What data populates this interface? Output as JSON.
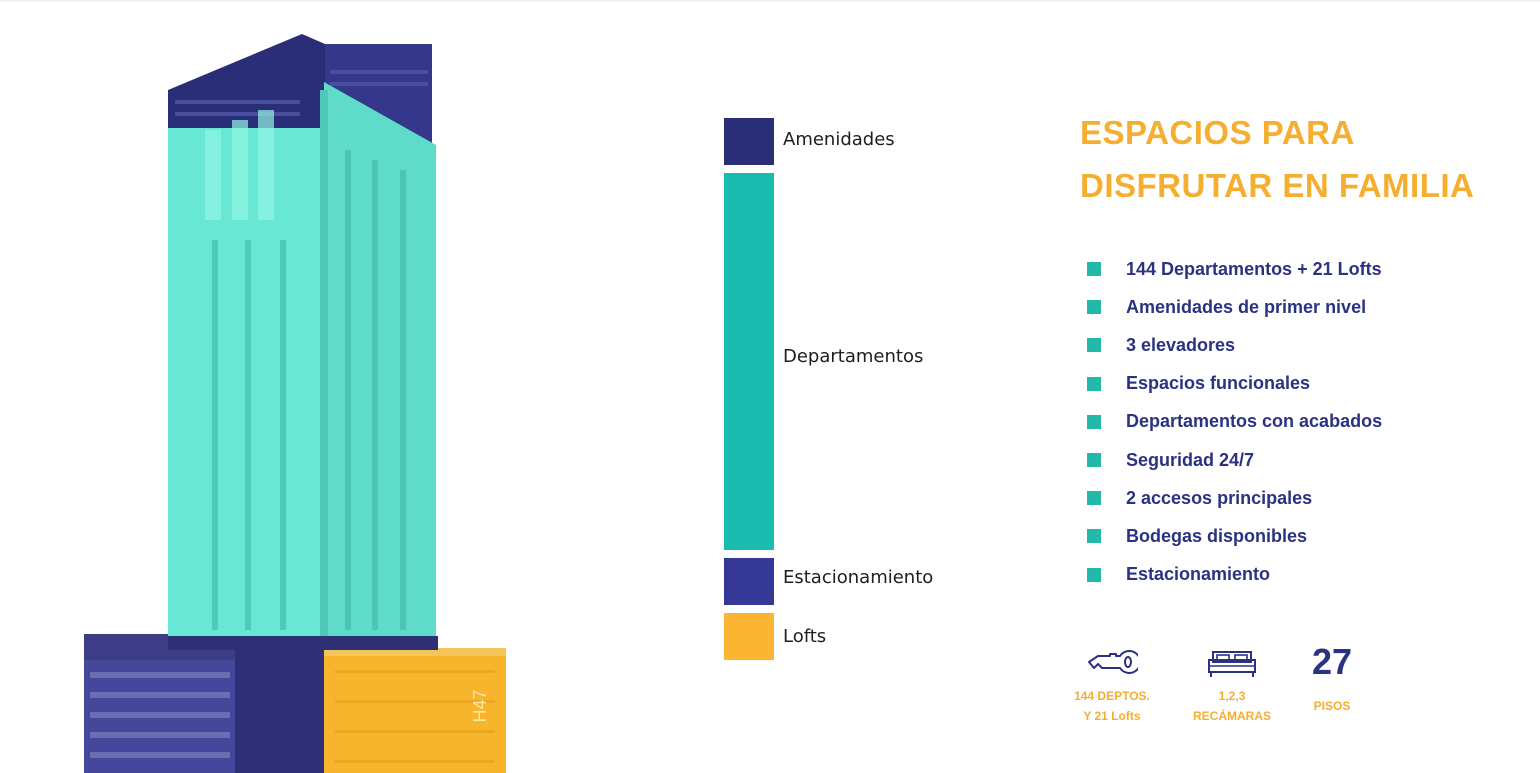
{
  "legend": [
    {
      "label": "Amenidades",
      "color": "#2a2e78"
    },
    {
      "label": "Departamentos",
      "color": "#1cbbaf"
    },
    {
      "label": "Estacionamiento",
      "color": "#353896"
    },
    {
      "label": "Lofts",
      "color": "#fbb533"
    }
  ],
  "heading": {
    "line1": "ESPACIOS PARA",
    "line2": "DISFRUTAR EN FAMILIA"
  },
  "features": [
    "144 Departamentos + 21 Lofts",
    "Amenidades de primer nivel",
    "3 elevadores",
    "Espacios funcionales",
    "Departamentos con acabados",
    "Seguridad 24/7",
    "2 accesos principales",
    "Bodegas disponibles",
    "Estacionamiento"
  ],
  "stats": {
    "units": {
      "icon": "key-icon",
      "line1": "144 DEPTOS.",
      "line2": "Y 21 Lofts"
    },
    "bedrooms": {
      "icon": "bed-icon",
      "line1": "1,2,3",
      "line2": "RECÁMARAS"
    },
    "floors": {
      "number": "27",
      "label": "PISOS"
    }
  },
  "building": {
    "sign": "H47",
    "colors": {
      "top": "#2a2e78",
      "tower": "#6eefd9",
      "parking": "#3c3d86",
      "lofts": "#f7b52e"
    }
  }
}
